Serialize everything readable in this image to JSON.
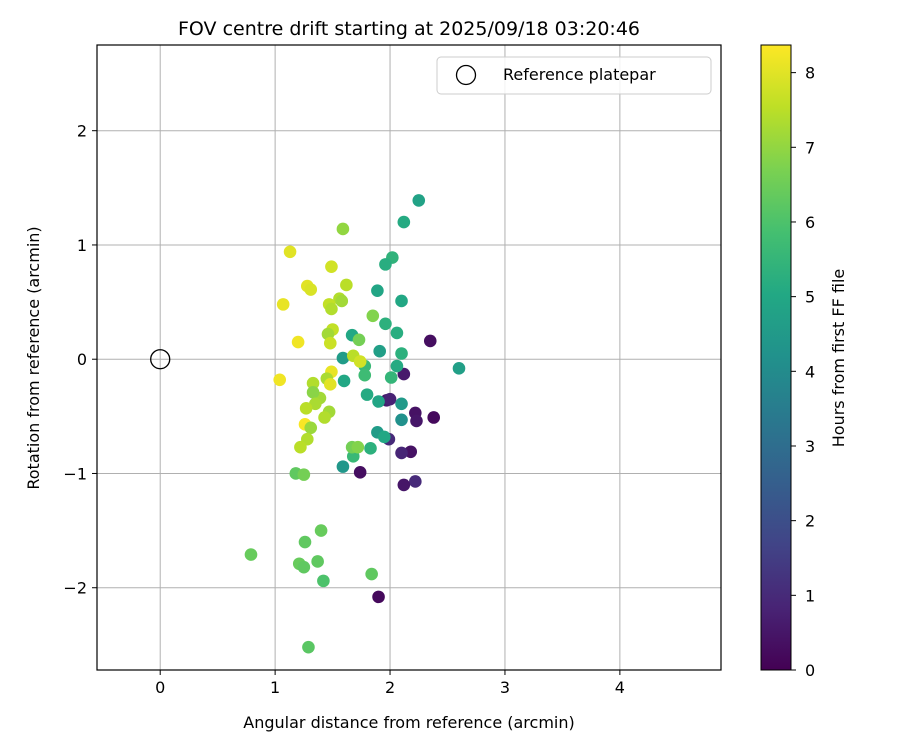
{
  "chart_data": {
    "type": "scatter",
    "title": "FOV centre drift starting at 2025/09/18 03:20:46",
    "xlabel": "Angular distance from reference (arcmin)",
    "ylabel": "Rotation from reference (arcmin)",
    "xlim": [
      -0.55,
      4.88
    ],
    "ylim": [
      -2.72,
      2.75
    ],
    "xticks": [
      0,
      1,
      2,
      3,
      4
    ],
    "xtick_labels": [
      "0",
      "1",
      "2",
      "3",
      "4"
    ],
    "yticks": [
      -2,
      -1,
      0,
      1,
      2
    ],
    "ytick_labels": [
      "−2",
      "−1",
      "0",
      "1",
      "2"
    ],
    "grid": true,
    "legend": {
      "position": "top-right",
      "entries": [
        "Reference platepar"
      ]
    },
    "colorbar": {
      "label": "Hours from first FF file",
      "range": [
        0,
        8.37
      ],
      "ticks": [
        0,
        1,
        2,
        3,
        4,
        5,
        6,
        7,
        8
      ],
      "tick_labels": [
        "0",
        "1",
        "2",
        "3",
        "4",
        "5",
        "6",
        "7",
        "8"
      ],
      "colormap": "viridis"
    },
    "reference_point": {
      "x": 0,
      "y": 0
    },
    "points": [
      {
        "x": 2.35,
        "y": 0.16,
        "h": 0.3
      },
      {
        "x": 2.38,
        "y": -0.51,
        "h": 0.2
      },
      {
        "x": 2.22,
        "y": -0.47,
        "h": 0.4
      },
      {
        "x": 2.23,
        "y": -0.54,
        "h": 0.5
      },
      {
        "x": 2.12,
        "y": -0.13,
        "h": 0.6
      },
      {
        "x": 2.18,
        "y": -0.81,
        "h": 0.4
      },
      {
        "x": 2.1,
        "y": -0.82,
        "h": 0.9
      },
      {
        "x": 2.22,
        "y": -1.07,
        "h": 1.0
      },
      {
        "x": 2.12,
        "y": -1.1,
        "h": 0.5
      },
      {
        "x": 1.97,
        "y": -0.36,
        "h": 0.6
      },
      {
        "x": 2.0,
        "y": -0.35,
        "h": 0.8
      },
      {
        "x": 1.99,
        "y": -0.7,
        "h": 1.0
      },
      {
        "x": 1.9,
        "y": -2.08,
        "h": 0.2
      },
      {
        "x": 1.74,
        "y": -0.99,
        "h": 0.3
      },
      {
        "x": 2.25,
        "y": 1.39,
        "h": 4.8
      },
      {
        "x": 2.12,
        "y": 1.2,
        "h": 5.1
      },
      {
        "x": 2.02,
        "y": 0.89,
        "h": 5.4
      },
      {
        "x": 1.96,
        "y": 0.83,
        "h": 5.2
      },
      {
        "x": 2.1,
        "y": 0.51,
        "h": 5.0
      },
      {
        "x": 1.89,
        "y": 0.6,
        "h": 4.9
      },
      {
        "x": 1.96,
        "y": 0.31,
        "h": 5.3
      },
      {
        "x": 2.06,
        "y": 0.23,
        "h": 5.2
      },
      {
        "x": 1.67,
        "y": 0.21,
        "h": 5.0
      },
      {
        "x": 1.59,
        "y": 0.01,
        "h": 4.6
      },
      {
        "x": 1.78,
        "y": -0.06,
        "h": 5.6
      },
      {
        "x": 1.91,
        "y": 0.07,
        "h": 4.7
      },
      {
        "x": 2.1,
        "y": 0.05,
        "h": 5.3
      },
      {
        "x": 2.06,
        "y": -0.06,
        "h": 5.1
      },
      {
        "x": 2.01,
        "y": -0.16,
        "h": 5.5
      },
      {
        "x": 1.78,
        "y": -0.14,
        "h": 5.7
      },
      {
        "x": 1.6,
        "y": -0.19,
        "h": 5.0
      },
      {
        "x": 1.8,
        "y": -0.31,
        "h": 5.1
      },
      {
        "x": 1.9,
        "y": -0.37,
        "h": 4.9
      },
      {
        "x": 2.1,
        "y": -0.39,
        "h": 4.5
      },
      {
        "x": 2.1,
        "y": -0.53,
        "h": 4.2
      },
      {
        "x": 1.89,
        "y": -0.64,
        "h": 4.6
      },
      {
        "x": 1.95,
        "y": -0.68,
        "h": 5.0
      },
      {
        "x": 1.83,
        "y": -0.78,
        "h": 5.3
      },
      {
        "x": 1.68,
        "y": -0.85,
        "h": 5.6
      },
      {
        "x": 1.59,
        "y": -0.94,
        "h": 4.4
      },
      {
        "x": 2.6,
        "y": -0.08,
        "h": 4.7
      },
      {
        "x": 1.59,
        "y": 1.14,
        "h": 7.0
      },
      {
        "x": 1.13,
        "y": 0.94,
        "h": 8.0
      },
      {
        "x": 1.49,
        "y": 0.81,
        "h": 7.8
      },
      {
        "x": 1.62,
        "y": 0.65,
        "h": 7.5
      },
      {
        "x": 1.28,
        "y": 0.64,
        "h": 8.0
      },
      {
        "x": 1.31,
        "y": 0.61,
        "h": 7.9
      },
      {
        "x": 1.56,
        "y": 0.53,
        "h": 7.4
      },
      {
        "x": 1.58,
        "y": 0.51,
        "h": 7.2
      },
      {
        "x": 1.47,
        "y": 0.48,
        "h": 7.6
      },
      {
        "x": 1.07,
        "y": 0.48,
        "h": 8.1
      },
      {
        "x": 1.49,
        "y": 0.44,
        "h": 7.4
      },
      {
        "x": 1.85,
        "y": 0.38,
        "h": 6.8
      },
      {
        "x": 1.5,
        "y": 0.26,
        "h": 7.6
      },
      {
        "x": 1.46,
        "y": 0.22,
        "h": 7.2
      },
      {
        "x": 1.73,
        "y": 0.17,
        "h": 6.6
      },
      {
        "x": 1.2,
        "y": 0.15,
        "h": 8.2
      },
      {
        "x": 1.48,
        "y": 0.14,
        "h": 7.7
      },
      {
        "x": 1.68,
        "y": 0.03,
        "h": 7.5
      },
      {
        "x": 1.74,
        "y": -0.02,
        "h": 7.8
      },
      {
        "x": 1.49,
        "y": -0.11,
        "h": 8.1
      },
      {
        "x": 1.04,
        "y": -0.18,
        "h": 8.2
      },
      {
        "x": 1.45,
        "y": -0.17,
        "h": 7.3
      },
      {
        "x": 1.48,
        "y": -0.22,
        "h": 8.0
      },
      {
        "x": 1.33,
        "y": -0.21,
        "h": 7.4
      },
      {
        "x": 1.39,
        "y": -0.34,
        "h": 7.2
      },
      {
        "x": 1.33,
        "y": -0.29,
        "h": 6.9
      },
      {
        "x": 1.35,
        "y": -0.39,
        "h": 7.3
      },
      {
        "x": 1.27,
        "y": -0.43,
        "h": 7.5
      },
      {
        "x": 1.47,
        "y": -0.46,
        "h": 7.2
      },
      {
        "x": 1.43,
        "y": -0.51,
        "h": 7.4
      },
      {
        "x": 1.26,
        "y": -0.57,
        "h": 8.3
      },
      {
        "x": 1.31,
        "y": -0.6,
        "h": 7.1
      },
      {
        "x": 1.28,
        "y": -0.7,
        "h": 7.4
      },
      {
        "x": 1.22,
        "y": -0.77,
        "h": 7.5
      },
      {
        "x": 1.67,
        "y": -0.77,
        "h": 6.6
      },
      {
        "x": 1.72,
        "y": -0.77,
        "h": 6.8
      },
      {
        "x": 1.18,
        "y": -1.0,
        "h": 6.3
      },
      {
        "x": 1.25,
        "y": -1.01,
        "h": 6.6
      },
      {
        "x": 0.79,
        "y": -1.71,
        "h": 6.4
      },
      {
        "x": 1.4,
        "y": -1.5,
        "h": 6.4
      },
      {
        "x": 1.26,
        "y": -1.6,
        "h": 6.3
      },
      {
        "x": 1.37,
        "y": -1.77,
        "h": 6.3
      },
      {
        "x": 1.21,
        "y": -1.79,
        "h": 6.4
      },
      {
        "x": 1.25,
        "y": -1.82,
        "h": 6.3
      },
      {
        "x": 1.84,
        "y": -1.88,
        "h": 6.3
      },
      {
        "x": 1.42,
        "y": -1.94,
        "h": 6.0
      },
      {
        "x": 1.29,
        "y": -2.52,
        "h": 6.2
      }
    ]
  }
}
